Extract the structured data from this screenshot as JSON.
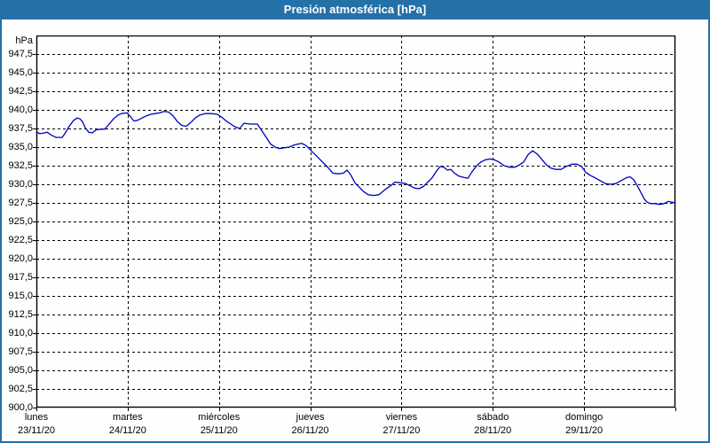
{
  "window": {
    "title": "Presión atmosférica [hPa]"
  },
  "colors": {
    "titlebar_bg": "#2471a8",
    "frame_border": "#2471a8",
    "plot_bg": "#fdfefd",
    "grid": "#000000",
    "axis": "#000000",
    "line": "#0000c0",
    "title_text": "#ffffff"
  },
  "chart_data": {
    "type": "line",
    "title": "Presión atmosférica [hPa]",
    "unit_label": "hPa",
    "ylabel": "hPa",
    "xlabel": "",
    "ylim": [
      900,
      950
    ],
    "ytick_step": 2.5,
    "grid": true,
    "legend_position": "none",
    "yticks": [
      [
        947.5,
        "947,5"
      ],
      [
        945.0,
        "945,0"
      ],
      [
        942.5,
        "942,5"
      ],
      [
        940.0,
        "940,0"
      ],
      [
        937.5,
        "937,5"
      ],
      [
        935.0,
        "935,0"
      ],
      [
        932.5,
        "932,5"
      ],
      [
        930.0,
        "930,0"
      ],
      [
        927.5,
        "927,5"
      ],
      [
        925.0,
        "925,0"
      ],
      [
        922.5,
        "922,5"
      ],
      [
        920.0,
        "920,0"
      ],
      [
        917.5,
        "917,5"
      ],
      [
        915.0,
        "915,0"
      ],
      [
        912.5,
        "912,5"
      ],
      [
        910.0,
        "910,0"
      ],
      [
        907.5,
        "907,5"
      ],
      [
        905.0,
        "905,0"
      ],
      [
        902.5,
        "902,5"
      ],
      [
        900.0,
        "900,0"
      ]
    ],
    "x_categories": [
      {
        "day": "lunes",
        "date": "23/11/20"
      },
      {
        "day": "martes",
        "date": "24/11/20"
      },
      {
        "day": "miércoles",
        "date": "25/11/20"
      },
      {
        "day": "jueves",
        "date": "26/11/20"
      },
      {
        "day": "viernes",
        "date": "27/11/20"
      },
      {
        "day": "sábado",
        "date": "28/11/20"
      },
      {
        "day": "domingo",
        "date": "29/11/20"
      }
    ],
    "series": [
      {
        "name": "Presión atmosférica",
        "points": [
          [
            0.0,
            937.0
          ],
          [
            0.039,
            936.8
          ],
          [
            0.088,
            936.9
          ],
          [
            0.117,
            937.0
          ],
          [
            0.165,
            936.6
          ],
          [
            0.214,
            936.3
          ],
          [
            0.282,
            936.3
          ],
          [
            0.311,
            936.8
          ],
          [
            0.36,
            937.8
          ],
          [
            0.408,
            938.6
          ],
          [
            0.447,
            938.9
          ],
          [
            0.476,
            938.8
          ],
          [
            0.506,
            938.4
          ],
          [
            0.535,
            937.6
          ],
          [
            0.574,
            937.0
          ],
          [
            0.612,
            936.9
          ],
          [
            0.651,
            937.3
          ],
          [
            0.7,
            937.4
          ],
          [
            0.749,
            937.4
          ],
          [
            0.797,
            938.1
          ],
          [
            0.846,
            938.8
          ],
          [
            0.894,
            939.3
          ],
          [
            0.933,
            939.5
          ],
          [
            0.992,
            939.6
          ],
          [
            1.031,
            939.1
          ],
          [
            1.069,
            938.5
          ],
          [
            1.108,
            938.6
          ],
          [
            1.157,
            938.9
          ],
          [
            1.206,
            939.2
          ],
          [
            1.254,
            939.4
          ],
          [
            1.303,
            939.5
          ],
          [
            1.351,
            939.6
          ],
          [
            1.4,
            939.8
          ],
          [
            1.449,
            939.7
          ],
          [
            1.497,
            939.2
          ],
          [
            1.546,
            938.4
          ],
          [
            1.594,
            937.9
          ],
          [
            1.643,
            937.8
          ],
          [
            1.691,
            938.3
          ],
          [
            1.74,
            938.9
          ],
          [
            1.789,
            939.3
          ],
          [
            1.847,
            939.5
          ],
          [
            1.915,
            939.5
          ],
          [
            1.983,
            939.4
          ],
          [
            2.032,
            939.0
          ],
          [
            2.08,
            938.5
          ],
          [
            2.129,
            938.1
          ],
          [
            2.178,
            937.7
          ],
          [
            2.226,
            937.5
          ],
          [
            2.275,
            938.2
          ],
          [
            2.343,
            938.1
          ],
          [
            2.421,
            938.1
          ],
          [
            2.469,
            937.2
          ],
          [
            2.518,
            936.3
          ],
          [
            2.566,
            935.4
          ],
          [
            2.615,
            935.0
          ],
          [
            2.664,
            934.8
          ],
          [
            2.712,
            934.9
          ],
          [
            2.771,
            935.0
          ],
          [
            2.829,
            935.3
          ],
          [
            2.907,
            935.5
          ],
          [
            2.955,
            935.2
          ],
          [
            3.004,
            934.6
          ],
          [
            3.053,
            934.0
          ],
          [
            3.101,
            933.4
          ],
          [
            3.15,
            932.8
          ],
          [
            3.198,
            932.2
          ],
          [
            3.247,
            931.5
          ],
          [
            3.305,
            931.4
          ],
          [
            3.364,
            931.5
          ],
          [
            3.403,
            931.9
          ],
          [
            3.442,
            931.3
          ],
          [
            3.49,
            930.2
          ],
          [
            3.539,
            929.6
          ],
          [
            3.587,
            929.0
          ],
          [
            3.636,
            928.6
          ],
          [
            3.694,
            928.5
          ],
          [
            3.753,
            928.6
          ],
          [
            3.811,
            929.2
          ],
          [
            3.879,
            929.8
          ],
          [
            3.928,
            930.3
          ],
          [
            3.986,
            930.2
          ],
          [
            4.045,
            930.1
          ],
          [
            4.093,
            929.8
          ],
          [
            4.142,
            929.5
          ],
          [
            4.19,
            929.4
          ],
          [
            4.239,
            929.7
          ],
          [
            4.288,
            930.3
          ],
          [
            4.336,
            930.9
          ],
          [
            4.385,
            931.8
          ],
          [
            4.424,
            932.4
          ],
          [
            4.463,
            932.3
          ],
          [
            4.502,
            931.9
          ],
          [
            4.541,
            932.0
          ],
          [
            4.58,
            931.5
          ],
          [
            4.628,
            931.1
          ],
          [
            4.687,
            930.9
          ],
          [
            4.726,
            930.8
          ],
          [
            4.774,
            931.7
          ],
          [
            4.823,
            932.5
          ],
          [
            4.871,
            933.0
          ],
          [
            4.92,
            933.3
          ],
          [
            4.969,
            933.4
          ],
          [
            5.017,
            933.3
          ],
          [
            5.066,
            933.0
          ],
          [
            5.124,
            932.5
          ],
          [
            5.183,
            932.3
          ],
          [
            5.241,
            932.3
          ],
          [
            5.29,
            932.6
          ],
          [
            5.338,
            933.0
          ],
          [
            5.387,
            934.0
          ],
          [
            5.436,
            934.5
          ],
          [
            5.484,
            934.1
          ],
          [
            5.533,
            933.4
          ],
          [
            5.581,
            932.7
          ],
          [
            5.63,
            932.2
          ],
          [
            5.688,
            932.0
          ],
          [
            5.747,
            932.0
          ],
          [
            5.805,
            932.4
          ],
          [
            5.863,
            932.7
          ],
          [
            5.922,
            932.7
          ],
          [
            5.97,
            932.4
          ],
          [
            6.019,
            931.6
          ],
          [
            6.067,
            931.2
          ],
          [
            6.116,
            930.9
          ],
          [
            6.174,
            930.5
          ],
          [
            6.232,
            930.1
          ],
          [
            6.291,
            930.0
          ],
          [
            6.349,
            930.1
          ],
          [
            6.407,
            930.5
          ],
          [
            6.466,
            930.9
          ],
          [
            6.505,
            931.0
          ],
          [
            6.544,
            930.6
          ],
          [
            6.583,
            929.8
          ],
          [
            6.622,
            928.9
          ],
          [
            6.661,
            928.0
          ],
          [
            6.69,
            927.6
          ],
          [
            6.729,
            927.4
          ],
          [
            6.777,
            927.4
          ],
          [
            6.826,
            927.3
          ],
          [
            6.875,
            927.4
          ],
          [
            6.923,
            927.7
          ],
          [
            6.962,
            927.6
          ],
          [
            7.0,
            927.5
          ]
        ]
      }
    ]
  }
}
